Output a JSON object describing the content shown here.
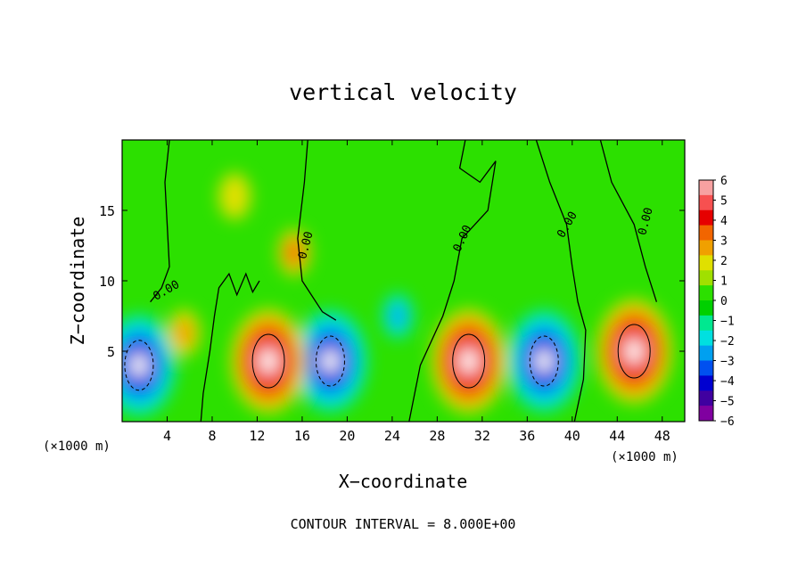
{
  "chart_data": {
    "type": "heatmap",
    "title": "vertical velocity",
    "xlabel": "X−coordinate",
    "ylabel": "Z−coordinate",
    "x_unit_left": "(×1000 m)",
    "x_unit_right": "(×1000 m)",
    "xlim": [
      0,
      50
    ],
    "ylim": [
      0,
      20
    ],
    "x_ticks": [
      4,
      8,
      12,
      16,
      20,
      24,
      28,
      32,
      36,
      40,
      44,
      48
    ],
    "y_ticks": [
      5,
      10,
      15
    ],
    "footer": "CONTOUR INTERVAL = 8.000E+00",
    "zero_contour_label": "0.00",
    "colorbar": {
      "range": [
        -6,
        6
      ],
      "ticks": [
        "6",
        "5",
        "4",
        "3",
        "2",
        "1",
        "0",
        "−1",
        "−2",
        "−3",
        "−4",
        "−5",
        "−6"
      ],
      "colors": [
        "#f7a1a1",
        "#f75050",
        "#e60000",
        "#f26500",
        "#f0a000",
        "#e0e000",
        "#a0e000",
        "#2ce000",
        "#00d000",
        "#00e890",
        "#00e0e0",
        "#00a0f0",
        "#0050f0",
        "#0000d0",
        "#4000a0",
        "#8000a0"
      ]
    },
    "updrafts": [
      {
        "x": 13.0,
        "z": 4.3,
        "peak": 6
      },
      {
        "x": 30.8,
        "z": 4.3,
        "peak": 6
      },
      {
        "x": 45.5,
        "z": 5.0,
        "peak": 6
      },
      {
        "x": 15.3,
        "z": 12.0,
        "peak": 3
      },
      {
        "x": 5.5,
        "z": 6.3,
        "peak": 2
      },
      {
        "x": 10.0,
        "z": 16.0,
        "peak": 1
      }
    ],
    "downdrafts": [
      {
        "x": 1.5,
        "z": 4.0,
        "peak": -6
      },
      {
        "x": 18.5,
        "z": 4.3,
        "peak": -6
      },
      {
        "x": 37.5,
        "z": 4.3,
        "peak": -6
      },
      {
        "x": 24.5,
        "z": 7.5,
        "peak": -3
      }
    ]
  }
}
